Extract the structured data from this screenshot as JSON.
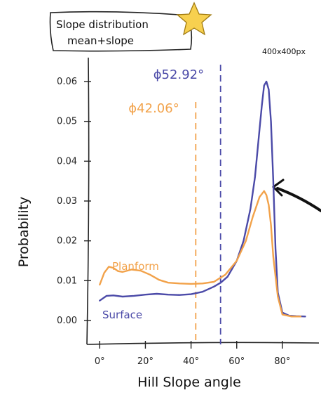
{
  "title_line1": "Slope distribution",
  "title_line2": "mean+slope",
  "size_note": "400x400px",
  "chart_data": {
    "type": "line",
    "xlabel": "Hill Slope angle",
    "ylabel": "Probability",
    "xlim": [
      -5,
      92
    ],
    "ylim": [
      -0.006,
      0.066
    ],
    "xticks": [
      0,
      20,
      40,
      60,
      80
    ],
    "xtick_labels": [
      "0°",
      "20°",
      "40°",
      "60°",
      "80°"
    ],
    "yticks": [
      0.0,
      0.01,
      0.02,
      0.03,
      0.04,
      0.05,
      0.06
    ],
    "ytick_labels": [
      "0.00",
      "0.01",
      "0.02",
      "0.03",
      "0.04",
      "0.05",
      "0.06"
    ],
    "grid": false,
    "series": [
      {
        "name": "Surface",
        "color": "#4b4aa8",
        "x": [
          0,
          3,
          6,
          10,
          15,
          20,
          25,
          30,
          35,
          40,
          45,
          50,
          53,
          56,
          60,
          63,
          66,
          68,
          70,
          71,
          72,
          73,
          74,
          75,
          76,
          77,
          78,
          80,
          83,
          86,
          90
        ],
        "y": [
          0.005,
          0.0062,
          0.0063,
          0.006,
          0.0062,
          0.0065,
          0.0067,
          0.0065,
          0.0064,
          0.0066,
          0.0072,
          0.0085,
          0.0095,
          0.011,
          0.015,
          0.02,
          0.028,
          0.036,
          0.048,
          0.054,
          0.059,
          0.06,
          0.058,
          0.05,
          0.035,
          0.018,
          0.007,
          0.002,
          0.0012,
          0.0011,
          0.001
        ]
      },
      {
        "name": "Planform",
        "color": "#f2a24a",
        "x": [
          0,
          2,
          4,
          6,
          8,
          10,
          14,
          18,
          22,
          26,
          30,
          35,
          40,
          45,
          50,
          55,
          60,
          64,
          67,
          70,
          72,
          73,
          74,
          75,
          76,
          78,
          80,
          84,
          88
        ],
        "y": [
          0.009,
          0.012,
          0.0135,
          0.0132,
          0.0124,
          0.0122,
          0.0128,
          0.0125,
          0.0115,
          0.0102,
          0.0095,
          0.0093,
          0.0092,
          0.0093,
          0.0097,
          0.0115,
          0.015,
          0.02,
          0.026,
          0.031,
          0.0325,
          0.0315,
          0.029,
          0.024,
          0.016,
          0.006,
          0.0015,
          0.001,
          0.001
        ]
      }
    ],
    "mean_lines": [
      {
        "label": "ϕ42.06°",
        "x": 42.06,
        "color": "#f2a24a"
      },
      {
        "label": "ϕ52.92°",
        "x": 52.92,
        "color": "#4b4aa8"
      }
    ]
  }
}
